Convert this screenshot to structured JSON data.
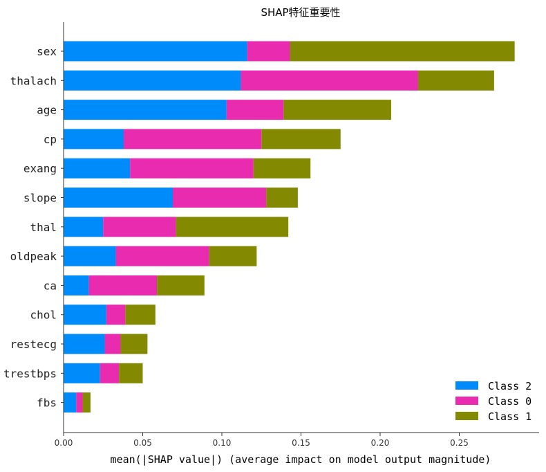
{
  "chart_data": {
    "type": "bar",
    "orientation": "horizontal",
    "stacked": true,
    "title": "SHAP特征重要性",
    "xlabel": "mean(|SHAP value|) (average impact on model output magnitude)",
    "ylabel": "",
    "xlim": [
      0,
      0.3
    ],
    "xticks": [
      "0.00",
      "0.05",
      "0.10",
      "0.15",
      "0.20",
      "0.25"
    ],
    "xtick_values": [
      0,
      0.05,
      0.1,
      0.15,
      0.2,
      0.25
    ],
    "categories": [
      "sex",
      "thalach",
      "age",
      "cp",
      "exang",
      "slope",
      "thal",
      "oldpeak",
      "ca",
      "chol",
      "restecg",
      "trestbps",
      "fbs"
    ],
    "series": [
      {
        "name": "Class 2",
        "color": "#008bfb",
        "values": [
          0.116,
          0.112,
          0.103,
          0.038,
          0.042,
          0.069,
          0.025,
          0.033,
          0.016,
          0.027,
          0.026,
          0.023,
          0.008
        ]
      },
      {
        "name": "Class 0",
        "color": "#e92bb0",
        "values": [
          0.027,
          0.112,
          0.036,
          0.087,
          0.078,
          0.059,
          0.046,
          0.059,
          0.043,
          0.012,
          0.01,
          0.012,
          0.004
        ]
      },
      {
        "name": "Class 1",
        "color": "#838900",
        "values": [
          0.142,
          0.048,
          0.068,
          0.05,
          0.036,
          0.02,
          0.071,
          0.03,
          0.03,
          0.019,
          0.017,
          0.015,
          0.005
        ]
      }
    ],
    "legend_position": "bottom-right",
    "grid": false
  }
}
